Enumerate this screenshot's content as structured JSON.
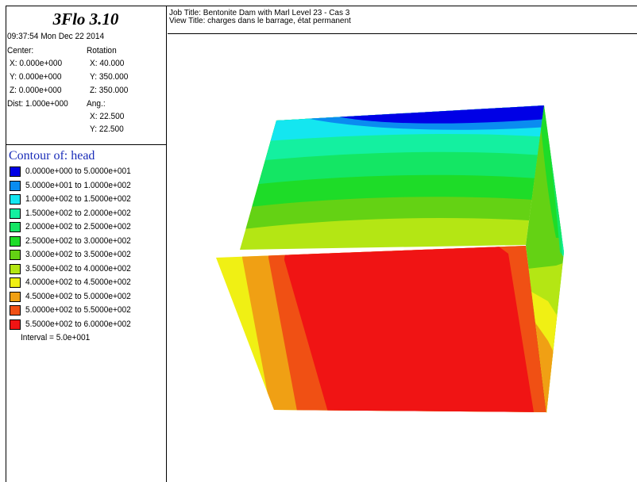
{
  "app": {
    "title": "3Flo 3.10",
    "timestamp": "09:37:54 Mon Dec 22 2014"
  },
  "view_info": {
    "center_label": "Center:",
    "rotation_label": "Rotation",
    "center_x": "X: 0.000e+000",
    "center_y": "Y: 0.000e+000",
    "center_z": "Z: 0.000e+000",
    "rot_x": "X:  40.000",
    "rot_y": "Y: 350.000",
    "rot_z": "Z: 350.000",
    "dist": "Dist: 1.000e+000",
    "ang_label": "Ang.:",
    "ang_x": "X:  22.500",
    "ang_y": "Y:  22.500"
  },
  "job": {
    "job_title": "Job Title: Bentonite Dam with Marl Level 23 - Cas 3",
    "view_title": "View Title: charges dans le barrage, état permanent"
  },
  "legend": {
    "title": "Contour of: head",
    "interval": "Interval =  5.0e+001",
    "items": [
      {
        "label": "0.0000e+000 to  5.0000e+001",
        "color": "#0000e6"
      },
      {
        "label": "5.0000e+001 to  1.0000e+002",
        "color": "#0a8cf0"
      },
      {
        "label": "1.0000e+002 to  1.5000e+002",
        "color": "#14e6f0"
      },
      {
        "label": "1.5000e+002 to  2.0000e+002",
        "color": "#14f0a0"
      },
      {
        "label": "2.0000e+002 to  2.5000e+002",
        "color": "#14e664"
      },
      {
        "label": "2.5000e+002 to  3.0000e+002",
        "color": "#1edc28"
      },
      {
        "label": "3.0000e+002 to  3.5000e+002",
        "color": "#64d214"
      },
      {
        "label": "3.5000e+002 to  4.0000e+002",
        "color": "#b4e614"
      },
      {
        "label": "4.0000e+002 to  4.5000e+002",
        "color": "#f0f014"
      },
      {
        "label": "4.5000e+002 to  5.0000e+002",
        "color": "#f0a014"
      },
      {
        "label": "5.0000e+002 to  5.5000e+002",
        "color": "#f05014"
      },
      {
        "label": "5.5000e+002 to  6.0000e+002",
        "color": "#f01414"
      }
    ]
  }
}
